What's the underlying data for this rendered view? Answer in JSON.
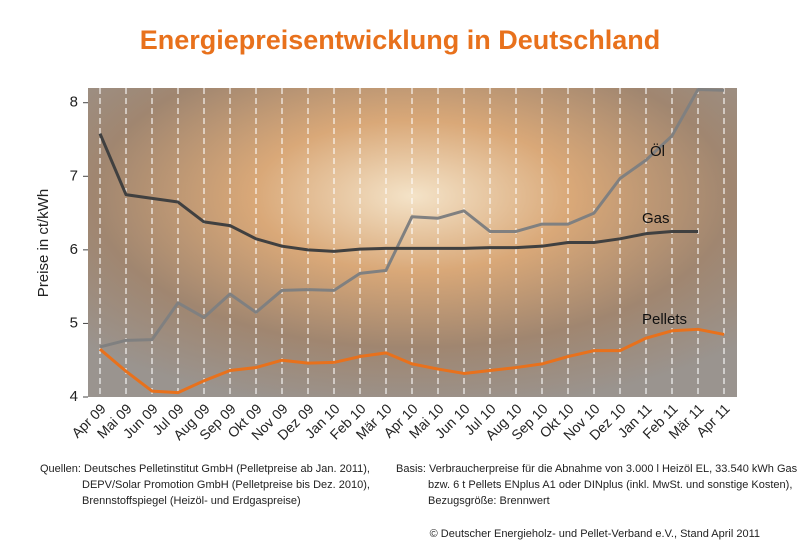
{
  "chart_data": {
    "type": "line",
    "title": "Energiepreisentwicklung in Deutschland",
    "y_label": "Preise in ct/kWh",
    "categories": [
      "Apr 09",
      "Mai 09",
      "Jun 09",
      "Jul 09",
      "Aug 09",
      "Sep 09",
      "Okt 09",
      "Nov 09",
      "Dez 09",
      "Jan 10",
      "Feb 10",
      "Mär 10",
      "Apr 10",
      "Mai 10",
      "Jun 10",
      "Jul 10",
      "Aug 10",
      "Sep 10",
      "Okt 10",
      "Nov 10",
      "Dez 10",
      "Jan 11",
      "Feb 11",
      "Mär 11",
      "Apr 11"
    ],
    "series": [
      {
        "name": "Öl",
        "color": "#808080",
        "values": [
          4.68,
          4.77,
          4.78,
          5.28,
          5.08,
          5.4,
          5.15,
          5.45,
          5.46,
          5.45,
          5.68,
          5.72,
          6.45,
          6.43,
          6.53,
          6.25,
          6.25,
          6.35,
          6.35,
          6.5,
          6.97,
          7.22,
          7.55,
          8.18,
          8.17
        ]
      },
      {
        "name": "Gas",
        "color": "#404040",
        "values": [
          7.58,
          6.75,
          6.7,
          6.65,
          6.38,
          6.33,
          6.15,
          6.05,
          6.0,
          5.98,
          6.01,
          6.02,
          6.02,
          6.02,
          6.02,
          6.03,
          6.03,
          6.05,
          6.1,
          6.1,
          6.15,
          6.22,
          6.25,
          6.25,
          null
        ]
      },
      {
        "name": "Pellets",
        "color": "#e8711c",
        "values": [
          4.65,
          4.35,
          4.08,
          4.06,
          4.22,
          4.36,
          4.4,
          4.5,
          4.46,
          4.47,
          4.55,
          4.6,
          4.45,
          4.38,
          4.32,
          4.36,
          4.4,
          4.45,
          4.55,
          4.63,
          4.63,
          4.8,
          4.9,
          4.92,
          4.85
        ]
      }
    ],
    "ylim": [
      4,
      8.2
    ],
    "yticks": [
      4,
      5,
      6,
      7,
      8
    ],
    "grid": true
  },
  "footer": {
    "sources": [
      "Quellen: Deutsches Pelletinstitut GmbH (Pelletpreise ab Jan. 2011),",
      "DEPV/Solar Promotion GmbH (Pelletpreise bis Dez. 2010),",
      "Brennstoffspiegel (Heizöl- und Erdgaspreise)"
    ],
    "basis": [
      "Basis: Verbraucherpreise für die Abnahme von 3.000 l Heizöl EL, 33.540 kWh Gas",
      "bzw. 6 t Pellets ENplus A1 oder DINplus (inkl. MwSt. und sonstige Kosten),",
      "Bezugsgröße: Brennwert"
    ],
    "copyright": "© Deutscher Energieholz- und Pellet-Verband e.V., Stand April 2011"
  }
}
